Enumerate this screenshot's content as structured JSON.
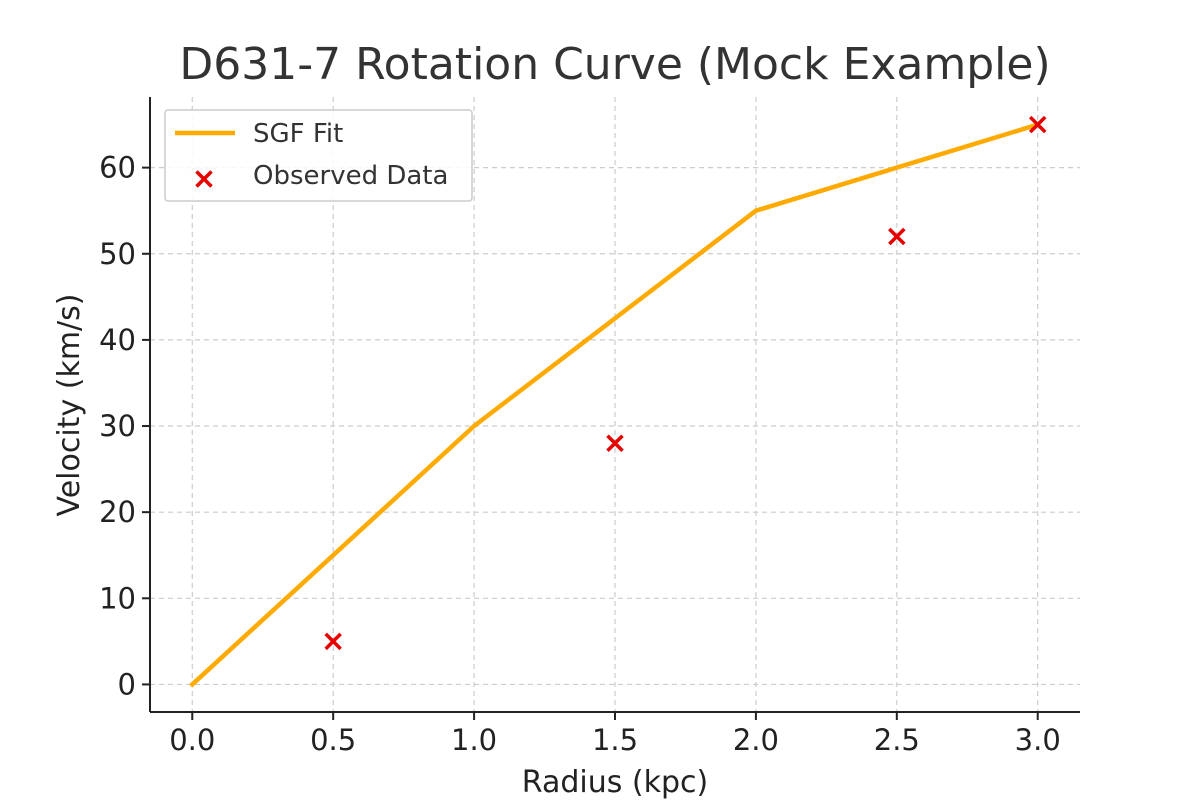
{
  "chart_data": {
    "type": "line",
    "title": "D631-7 Rotation Curve (Mock Example)",
    "xlabel": "Radius (kpc)",
    "ylabel": "Velocity (km/s)",
    "xlim": [
      -0.15,
      3.15
    ],
    "ylim": [
      -3.2,
      68.2
    ],
    "xticks": [
      0.0,
      0.5,
      1.0,
      1.5,
      2.0,
      2.5,
      3.0
    ],
    "xtick_labels": [
      "0.0",
      "0.5",
      "1.0",
      "1.5",
      "2.0",
      "2.5",
      "3.0"
    ],
    "yticks": [
      0,
      10,
      20,
      30,
      40,
      50,
      60
    ],
    "ytick_labels": [
      "0",
      "10",
      "20",
      "30",
      "40",
      "50",
      "60"
    ],
    "grid": true,
    "legend_position": "top-left",
    "series": [
      {
        "name": "SGF Fit",
        "kind": "line",
        "color": "#FFAA00",
        "x": [
          0.0,
          1.0,
          2.0,
          3.0
        ],
        "y": [
          0,
          30,
          55,
          65
        ]
      },
      {
        "name": "Observed Data",
        "kind": "scatter",
        "marker": "x",
        "color": "#E60000",
        "x": [
          0.5,
          1.5,
          2.5,
          3.0
        ],
        "y": [
          5,
          28,
          52,
          65
        ]
      }
    ]
  }
}
